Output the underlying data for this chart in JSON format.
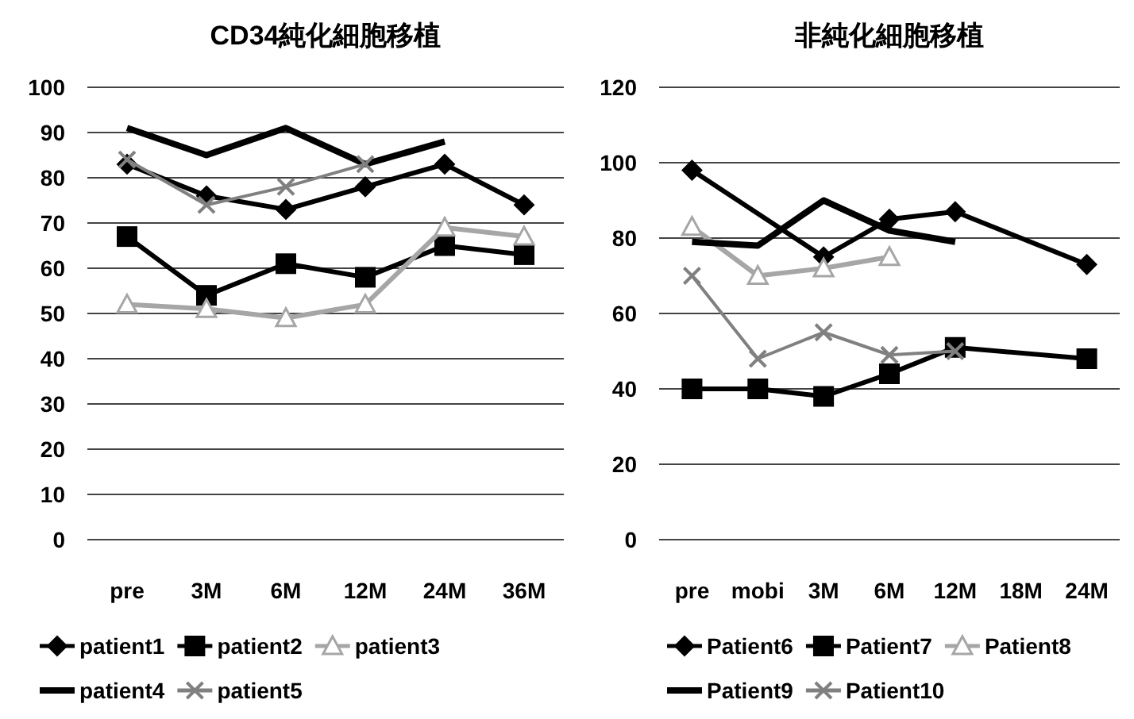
{
  "chart_data": [
    {
      "type": "line",
      "title": "CD34純化細胞移植",
      "categories": [
        "pre",
        "3M",
        "6M",
        "12M",
        "24M",
        "36M"
      ],
      "ylim": [
        0,
        100
      ],
      "yticks": [
        0,
        10,
        20,
        30,
        40,
        50,
        60,
        70,
        80,
        90,
        100
      ],
      "grid": "y",
      "legend": "bottom",
      "series": [
        {
          "name": "patient1",
          "color": "#000000",
          "marker": "diamond",
          "values": [
            83,
            76,
            73,
            78,
            83,
            74
          ]
        },
        {
          "name": "patient2",
          "color": "#000000",
          "marker": "square",
          "values": [
            67,
            54,
            61,
            58,
            65,
            63
          ]
        },
        {
          "name": "patient3",
          "color": "#a6a6a6",
          "marker": "triangle",
          "values": [
            52,
            51,
            49,
            52,
            69,
            67
          ]
        },
        {
          "name": "patient4",
          "color": "#000000",
          "marker": "none",
          "values": [
            91,
            85,
            91,
            83,
            88,
            null
          ]
        },
        {
          "name": "patient5",
          "color": "#808080",
          "marker": "cross",
          "values": [
            84,
            74,
            78,
            83,
            null,
            null
          ]
        }
      ]
    },
    {
      "type": "line",
      "title": "非純化細胞移植",
      "categories": [
        "pre",
        "mobi",
        "3M",
        "6M",
        "12M",
        "18M",
        "24M"
      ],
      "ylim": [
        0,
        120
      ],
      "yticks": [
        0,
        20,
        40,
        60,
        80,
        100,
        120
      ],
      "grid": "y",
      "legend": "bottom",
      "series": [
        {
          "name": "Patient6",
          "color": "#000000",
          "marker": "diamond",
          "values": [
            98,
            null,
            75,
            85,
            87,
            null,
            73
          ]
        },
        {
          "name": "Patient7",
          "color": "#000000",
          "marker": "square",
          "values": [
            40,
            40,
            38,
            44,
            51,
            null,
            48
          ]
        },
        {
          "name": "Patient8",
          "color": "#a6a6a6",
          "marker": "triangle",
          "values": [
            83,
            70,
            72,
            75,
            null,
            null,
            null
          ]
        },
        {
          "name": "Patient9",
          "color": "#000000",
          "marker": "none",
          "values": [
            79,
            78,
            90,
            82,
            79,
            null,
            null
          ]
        },
        {
          "name": "Patient10",
          "color": "#808080",
          "marker": "cross",
          "values": [
            70,
            48,
            55,
            49,
            50,
            null,
            null
          ]
        }
      ]
    }
  ]
}
